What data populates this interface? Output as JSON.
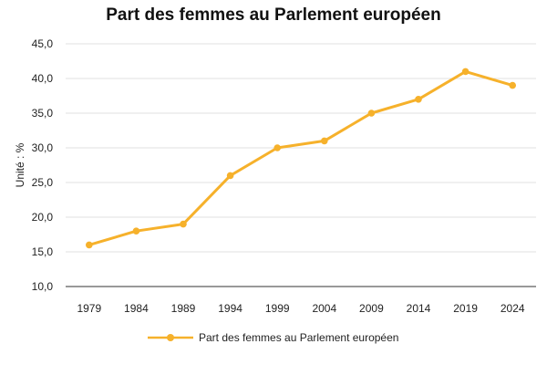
{
  "chart_data": {
    "type": "line",
    "title": "Part des femmes au Parlement européen",
    "ylabel": "Unité : %",
    "xlabel": "",
    "x": [
      "1979",
      "1984",
      "1989",
      "1994",
      "1999",
      "2004",
      "2009",
      "2014",
      "2019",
      "2024"
    ],
    "series": [
      {
        "name": "Part des femmes au Parlement européen",
        "values": [
          16,
          18,
          19,
          26,
          30,
          31,
          35,
          37,
          41,
          39
        ],
        "color": "#F6B12B"
      }
    ],
    "ylim": [
      10,
      45
    ],
    "yticks": [
      "10,0",
      "15,0",
      "20,0",
      "25,0",
      "30,0",
      "35,0",
      "40,0",
      "45,0"
    ],
    "grid": true,
    "legend_position": "bottom"
  }
}
